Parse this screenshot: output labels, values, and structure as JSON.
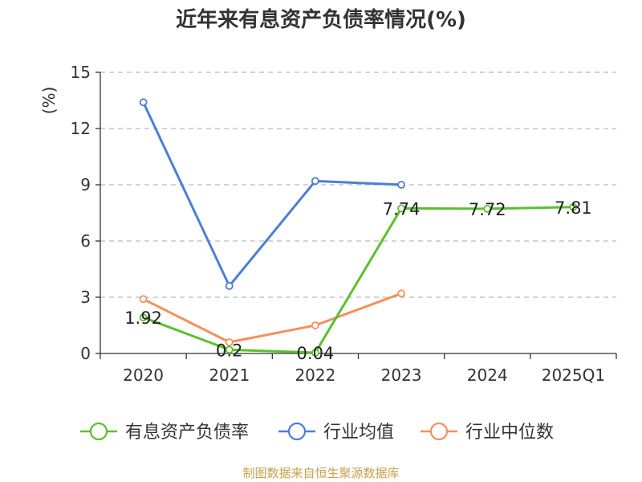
{
  "title": "近年来有息资产负债率情况(%)",
  "footer": "制图数据来自恒生聚源数据库",
  "colors": {
    "debt_ratio": "#5ac12c",
    "industry_avg": "#4a7fd8",
    "industry_median": "#f5905a",
    "grid": "#bbbbbb",
    "axis": "#333333",
    "ylabel": "#cc0000",
    "footer": "#c8a14c"
  },
  "chart_data": {
    "type": "line",
    "title": "近年来有息资产负债率情况(%)",
    "ylabel": "(%)",
    "xlabel": "",
    "categories": [
      "2020",
      "2021",
      "2022",
      "2023",
      "2024",
      "2025Q1"
    ],
    "yticks": [
      "0",
      "3",
      "6",
      "9",
      "12",
      "15"
    ],
    "ylim": [
      0,
      15
    ],
    "grid": true,
    "legend_position": "bottom",
    "series": [
      {
        "name": "有息资产负债率",
        "values": [
          1.92,
          0.2,
          0.04,
          7.74,
          7.72,
          7.81
        ],
        "labels": [
          "1.92",
          "0.2",
          "0.04",
          "7.74",
          "7.72",
          "7.81"
        ]
      },
      {
        "name": "行业均值",
        "values": [
          13.4,
          3.6,
          9.2,
          9.0,
          null,
          null
        ]
      },
      {
        "name": "行业中位数",
        "values": [
          2.9,
          0.6,
          1.5,
          3.2,
          null,
          null
        ]
      }
    ]
  }
}
